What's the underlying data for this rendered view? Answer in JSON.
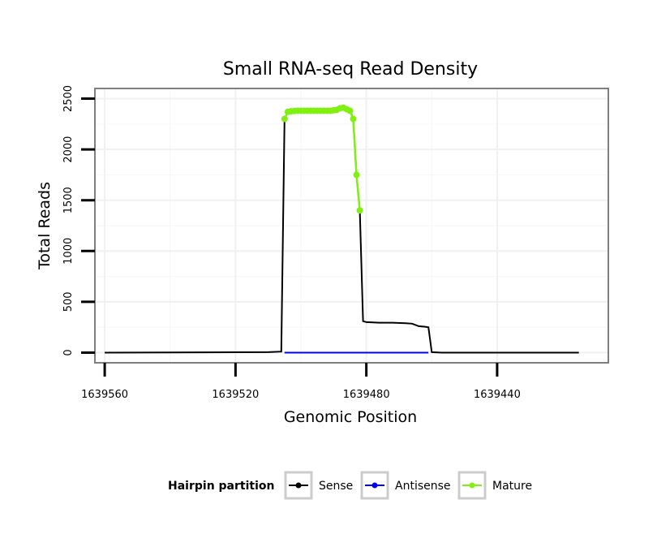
{
  "chart_data": {
    "type": "line",
    "title": "Small RNA-seq Read Density",
    "xlabel": "Genomic Position",
    "ylabel": "Total Reads",
    "xlim": [
      1639563,
      1639406
    ],
    "x_reversed": true,
    "ylim": [
      -100,
      2600
    ],
    "x_ticks": [
      1639560,
      1639520,
      1639480,
      1639440
    ],
    "y_ticks": [
      0,
      500,
      1000,
      1500,
      2000,
      2500
    ],
    "grid": true,
    "legend": {
      "title": "Hairpin partition",
      "position": "bottom",
      "entries": [
        "Sense",
        "Antisense",
        "Mature"
      ]
    },
    "series": [
      {
        "name": "Sense",
        "color": "#000000",
        "marker_on_points": false,
        "x": [
          1639560,
          1639510,
          1639506,
          1639505,
          1639504,
          1639502,
          1639500,
          1639495,
          1639490,
          1639486,
          1639485,
          1639484,
          1639483,
          1639482,
          1639481,
          1639480,
          1639476,
          1639472,
          1639468,
          1639466,
          1639464,
          1639462,
          1639461,
          1639460,
          1639457,
          1639450,
          1639440,
          1639415
        ],
        "y": [
          0,
          5,
          10,
          2300,
          2370,
          2380,
          2380,
          2380,
          2385,
          2400,
          2390,
          2300,
          1750,
          1400,
          310,
          300,
          295,
          295,
          290,
          285,
          260,
          255,
          250,
          5,
          0,
          0,
          0,
          0
        ]
      },
      {
        "name": "Antisense",
        "color": "#0000ff",
        "marker_on_points": false,
        "x": [
          1639505,
          1639461
        ],
        "y": [
          0,
          0
        ]
      },
      {
        "name": "Mature",
        "color": "#80f010",
        "marker_on_points": true,
        "x": [
          1639505,
          1639504,
          1639503,
          1639502,
          1639501,
          1639500,
          1639499,
          1639498,
          1639497,
          1639496,
          1639495,
          1639494,
          1639493,
          1639492,
          1639491,
          1639490,
          1639489,
          1639488,
          1639487,
          1639486,
          1639485,
          1639484,
          1639483,
          1639482
        ],
        "y": [
          2300,
          2370,
          2375,
          2378,
          2380,
          2380,
          2380,
          2380,
          2380,
          2380,
          2380,
          2380,
          2380,
          2380,
          2380,
          2385,
          2390,
          2405,
          2410,
          2395,
          2380,
          2300,
          1750,
          1400
        ]
      }
    ]
  }
}
